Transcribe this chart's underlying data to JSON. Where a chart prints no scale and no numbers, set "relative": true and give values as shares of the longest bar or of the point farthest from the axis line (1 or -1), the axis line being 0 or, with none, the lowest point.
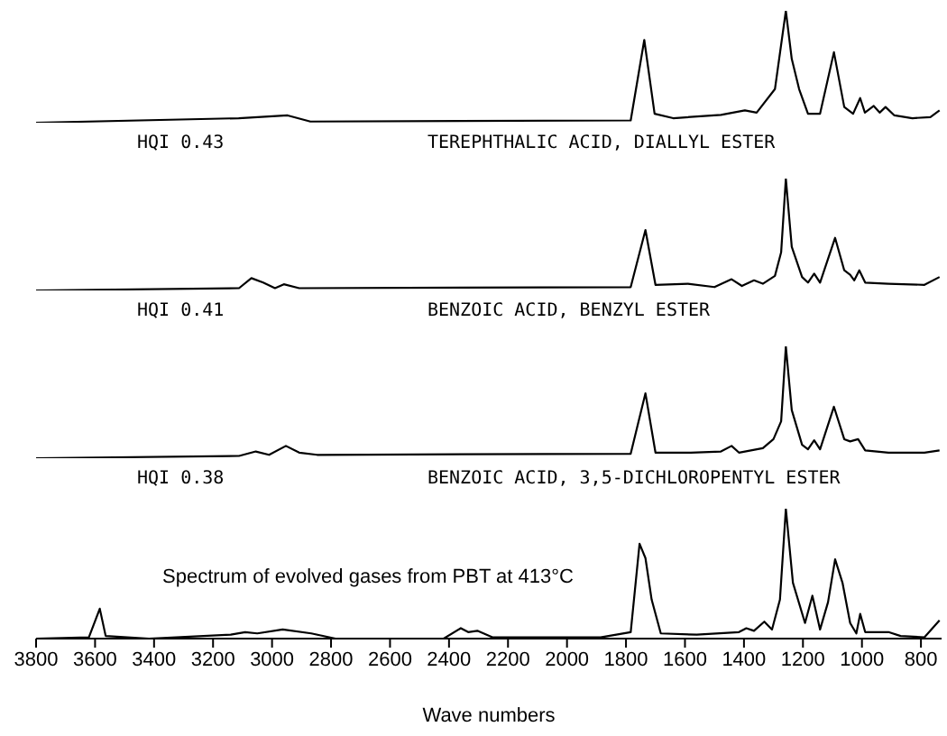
{
  "chart_data": [
    {
      "type": "line",
      "relative": true,
      "tick_labels": false,
      "xlim": [
        3800,
        730
      ],
      "annotations": [
        "HQI  0.43",
        "TEREPHTHALIC ACID, DIALLYL ESTER"
      ],
      "series": [
        {
          "color": "#000000",
          "x": [
            3800,
            3113,
            2947,
            2870,
            1784,
            1738,
            1703,
            1640,
            1478,
            1397,
            1357,
            1295,
            1258,
            1238,
            1213,
            1183,
            1142,
            1095,
            1060,
            1030,
            1006,
            990,
            960,
            940,
            920,
            890,
            829,
            768,
            737
          ],
          "values": [
            0,
            0.04,
            0.065,
            0.01,
            0.02,
            0.74,
            0.08,
            0.04,
            0.07,
            0.11,
            0.09,
            0.3,
            1,
            0.57,
            0.3,
            0.08,
            0.08,
            0.63,
            0.14,
            0.08,
            0.22,
            0.09,
            0.15,
            0.09,
            0.14,
            0.065,
            0.04,
            0.05,
            0.11
          ]
        }
      ]
    },
    {
      "type": "line",
      "relative": true,
      "tick_labels": false,
      "xlim": [
        3800,
        730
      ],
      "annotations": [
        "HQI  0.41",
        "BENZOIC ACID, BENZYL ESTER"
      ],
      "series": [
        {
          "color": "#000000",
          "x": [
            3800,
            3112,
            3070,
            3030,
            2990,
            2960,
            2908,
            1784,
            1734,
            1700,
            1590,
            1500,
            1442,
            1407,
            1366,
            1336,
            1295,
            1274,
            1258,
            1238,
            1203,
            1183,
            1162,
            1142,
            1091,
            1060,
            1040,
            1026,
            1009,
            989,
            910,
            788,
            737
          ],
          "values": [
            0,
            0.02,
            0.11,
            0.07,
            0.02,
            0.055,
            0.02,
            0.03,
            0.54,
            0.05,
            0.06,
            0.03,
            0.1,
            0.04,
            0.09,
            0.06,
            0.13,
            0.34,
            1,
            0.39,
            0.12,
            0.07,
            0.15,
            0.07,
            0.47,
            0.18,
            0.14,
            0.09,
            0.18,
            0.07,
            0.06,
            0.05,
            0.12
          ]
        }
      ]
    },
    {
      "type": "line",
      "relative": true,
      "tick_labels": false,
      "xlim": [
        3800,
        730
      ],
      "annotations": [
        "HQI 0.38",
        "BENZOIC ACID, 3,5-DICHLOROPENTYL ESTER"
      ],
      "series": [
        {
          "color": "#000000",
          "x": [
            3800,
            3112,
            3055,
            3010,
            2953,
            2908,
            2847,
            1784,
            1734,
            1700,
            1580,
            1478,
            1442,
            1417,
            1336,
            1300,
            1274,
            1258,
            1238,
            1203,
            1183,
            1162,
            1142,
            1095,
            1060,
            1040,
            1013,
            989,
            910,
            788,
            737
          ],
          "values": [
            0,
            0.02,
            0.06,
            0.03,
            0.11,
            0.05,
            0.03,
            0.04,
            0.58,
            0.05,
            0.05,
            0.06,
            0.11,
            0.05,
            0.09,
            0.17,
            0.33,
            1,
            0.43,
            0.12,
            0.08,
            0.16,
            0.08,
            0.46,
            0.17,
            0.15,
            0.17,
            0.07,
            0.05,
            0.05,
            0.07
          ]
        }
      ]
    },
    {
      "type": "line",
      "relative": true,
      "tick_labels": "x",
      "xlim": [
        3800,
        730
      ],
      "xticks": [
        3800,
        3600,
        3400,
        3200,
        3000,
        2800,
        2600,
        2400,
        2200,
        2000,
        1800,
        1600,
        1400,
        1200,
        1000,
        800
      ],
      "xlabel": "Wave numbers",
      "annotations": [
        "Spectrum of evolved gases from PBT at 413°C"
      ],
      "series": [
        {
          "color": "#000000",
          "x": [
            3800,
            3621,
            3584,
            3564,
            3417,
            3140,
            3091,
            3050,
            2964,
            2867,
            2785,
            2418,
            2360,
            2335,
            2304,
            2253,
            1886,
            1784,
            1754,
            1734,
            1713,
            1682,
            1560,
            1417,
            1392,
            1366,
            1331,
            1305,
            1278,
            1258,
            1234,
            1193,
            1168,
            1142,
            1115,
            1091,
            1066,
            1040,
            1019,
            1006,
            989,
            910,
            869,
            788,
            737
          ],
          "values": [
            0,
            0.01,
            0.23,
            0.02,
            0,
            0.03,
            0.05,
            0.04,
            0.07,
            0.04,
            0,
            0,
            0.08,
            0.05,
            0.06,
            0.01,
            0.01,
            0.05,
            0.73,
            0.62,
            0.3,
            0.04,
            0.03,
            0.05,
            0.08,
            0.06,
            0.13,
            0.07,
            0.3,
            1,
            0.43,
            0.12,
            0.33,
            0.07,
            0.28,
            0.61,
            0.43,
            0.12,
            0.04,
            0.19,
            0.05,
            0.05,
            0.02,
            0.01,
            0.14
          ]
        }
      ]
    }
  ]
}
